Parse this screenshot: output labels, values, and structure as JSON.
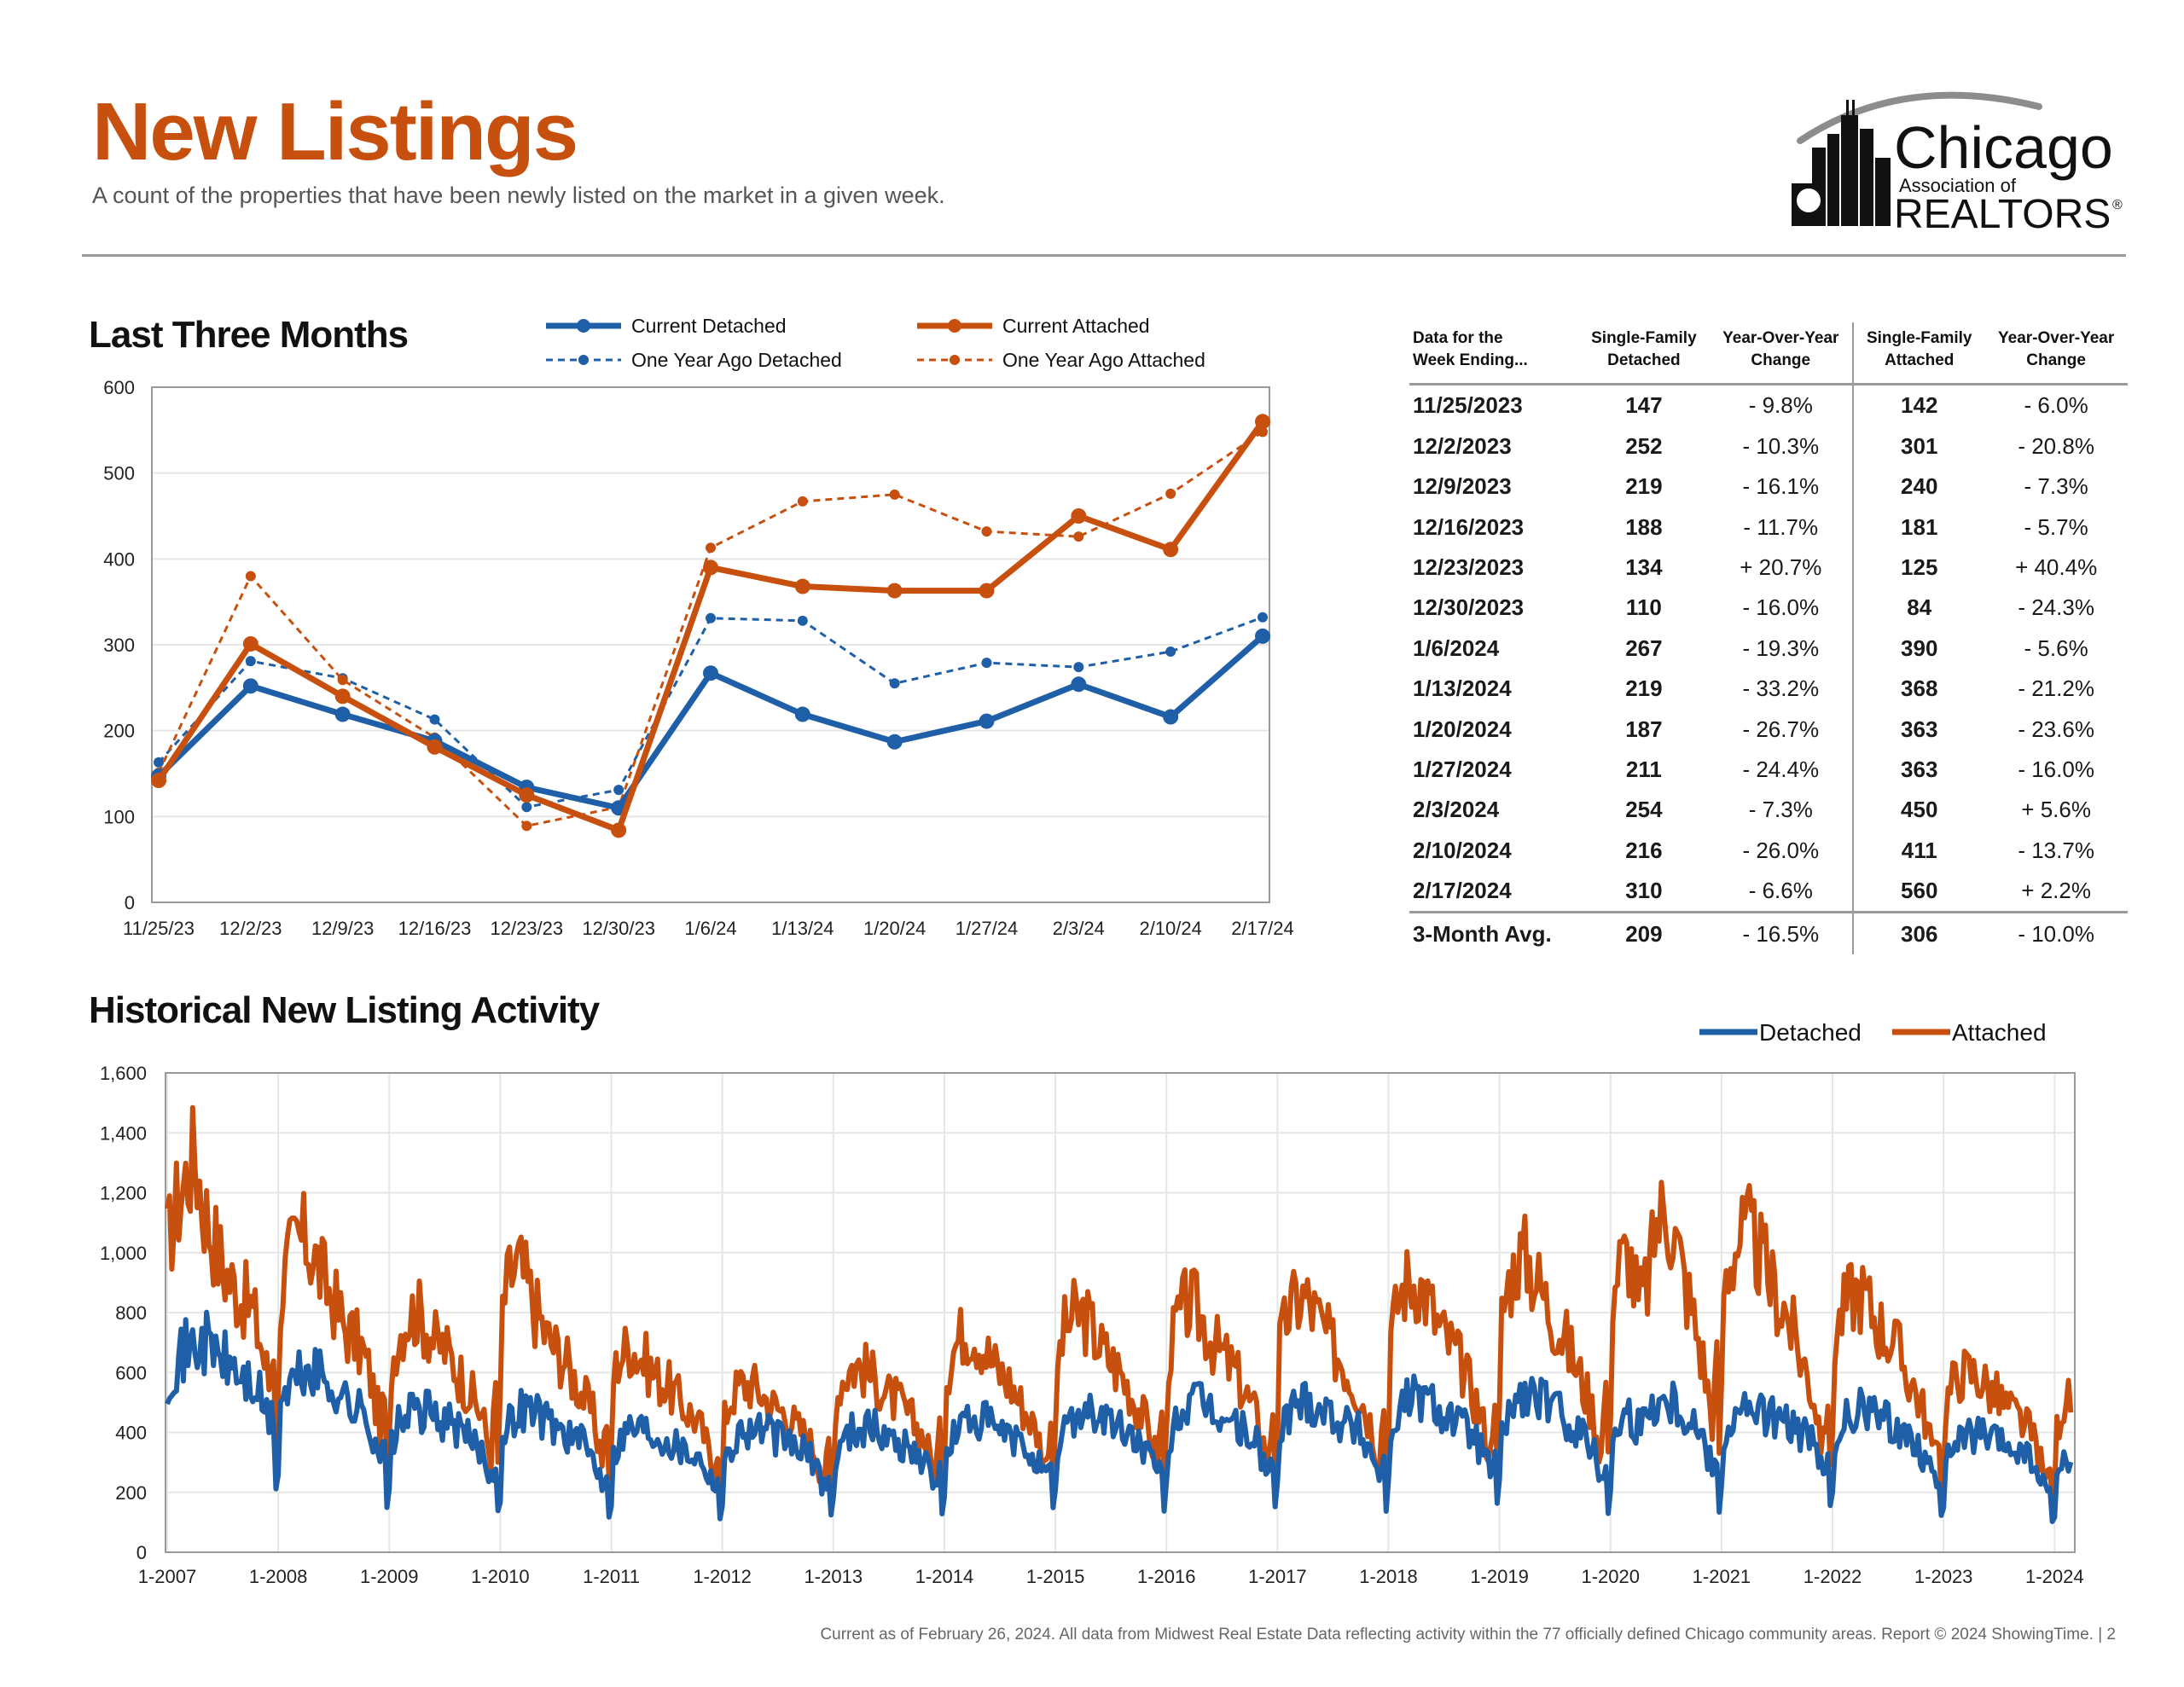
{
  "header": {
    "title": "New Listings",
    "subtitle": "A count of the properties that have been newly listed on the market in a given week.",
    "logo": {
      "name_line1": "Chicago",
      "name_line2": "Association of",
      "name_line3": "REALTORS",
      "reg": "®"
    }
  },
  "sections": {
    "last_three_months": "Last Three Months",
    "historical": "Historical New Listing Activity"
  },
  "colors": {
    "blue": "#1f5fa8",
    "orange": "#c8500e",
    "grid": "#e6e6e6",
    "axis": "#9a9a9a"
  },
  "table": {
    "headers": [
      "Data for the\nWeek Ending...",
      "Single-Family\nDetached",
      "Year-Over-Year\nChange",
      "Single-Family\nAttached",
      "Year-Over-Year\nChange"
    ],
    "rows": [
      [
        "11/25/2023",
        "147",
        "- 9.8%",
        "142",
        "- 6.0%"
      ],
      [
        "12/2/2023",
        "252",
        "- 10.3%",
        "301",
        "- 20.8%"
      ],
      [
        "12/9/2023",
        "219",
        "- 16.1%",
        "240",
        "- 7.3%"
      ],
      [
        "12/16/2023",
        "188",
        "- 11.7%",
        "181",
        "- 5.7%"
      ],
      [
        "12/23/2023",
        "134",
        "+ 20.7%",
        "125",
        "+ 40.4%"
      ],
      [
        "12/30/2023",
        "110",
        "- 16.0%",
        "84",
        "- 24.3%"
      ],
      [
        "1/6/2024",
        "267",
        "- 19.3%",
        "390",
        "- 5.6%"
      ],
      [
        "1/13/2024",
        "219",
        "- 33.2%",
        "368",
        "- 21.2%"
      ],
      [
        "1/20/2024",
        "187",
        "- 26.7%",
        "363",
        "- 23.6%"
      ],
      [
        "1/27/2024",
        "211",
        "- 24.4%",
        "363",
        "- 16.0%"
      ],
      [
        "2/3/2024",
        "254",
        "- 7.3%",
        "450",
        "+ 5.6%"
      ],
      [
        "2/10/2024",
        "216",
        "- 26.0%",
        "411",
        "- 13.7%"
      ],
      [
        "2/17/2024",
        "310",
        "- 6.6%",
        "560",
        "+ 2.2%"
      ]
    ],
    "avg": [
      "3-Month Avg.",
      "209",
      "- 16.5%",
      "306",
      "- 10.0%"
    ]
  },
  "footer": "Current as of February 26, 2024. All data from Midwest Real Estate Data reflecting activity within the 77 officially defined Chicago community areas. Report © 2024 ShowingTime.  |  2",
  "chart_data": [
    {
      "type": "line",
      "title": "Last Three Months",
      "categories": [
        "11/25/23",
        "12/2/23",
        "12/9/23",
        "12/16/23",
        "12/23/23",
        "12/30/23",
        "1/6/24",
        "1/13/24",
        "1/20/24",
        "1/27/24",
        "2/3/24",
        "2/10/24",
        "2/17/24"
      ],
      "ylim": [
        0,
        600
      ],
      "yticks": [
        0,
        100,
        200,
        300,
        400,
        500,
        600
      ],
      "grid": true,
      "legend": "top",
      "series": [
        {
          "name": "Current Detached",
          "style": "solid",
          "color": "#1f5fa8",
          "values": [
            147,
            252,
            219,
            188,
            134,
            110,
            267,
            219,
            187,
            211,
            254,
            216,
            310
          ]
        },
        {
          "name": "Current Attached",
          "style": "solid",
          "color": "#c8500e",
          "values": [
            142,
            301,
            240,
            181,
            125,
            84,
            390,
            368,
            363,
            363,
            450,
            411,
            560
          ]
        },
        {
          "name": "One Year Ago Detached",
          "style": "dashed",
          "color": "#1f5fa8",
          "values": [
            163,
            281,
            261,
            213,
            111,
            131,
            331,
            328,
            255,
            279,
            274,
            292,
            332
          ]
        },
        {
          "name": "One Year Ago Attached",
          "style": "dashed",
          "color": "#c8500e",
          "values": [
            151,
            380,
            259,
            192,
            89,
            111,
            413,
            467,
            475,
            432,
            426,
            476,
            548
          ]
        }
      ]
    },
    {
      "type": "line",
      "title": "Historical New Listing Activity",
      "x_ticks": [
        "1-2007",
        "1-2008",
        "1-2009",
        "1-2010",
        "1-2011",
        "1-2012",
        "1-2013",
        "1-2014",
        "1-2015",
        "1-2016",
        "1-2017",
        "1-2018",
        "1-2019",
        "1-2020",
        "1-2021",
        "1-2022",
        "1-2023",
        "1-2024"
      ],
      "y_tick_labels": [
        "0",
        "200",
        "400",
        "600",
        "800",
        "1,000",
        "1,200",
        "1,400",
        "1,600"
      ],
      "ylim": [
        0,
        1600
      ],
      "grid": true,
      "legend": "top-right",
      "series": [
        {
          "name": "Detached",
          "color": "#1f5fa8",
          "monthly": [
            [
              580,
              640,
              670,
              690,
              700,
              680,
              640,
              620,
              580,
              560,
              520,
              430
            ],
            [
              480,
              540,
              580,
              600,
              600,
              570,
              550,
              520,
              480,
              470,
              420,
              330
            ],
            [
              340,
              420,
              460,
              470,
              470,
              450,
              440,
              420,
              390,
              370,
              340,
              260
            ],
            [
              330,
              430,
              480,
              480,
              470,
              440,
              420,
              400,
              380,
              360,
              320,
              240
            ],
            [
              300,
              380,
              420,
              420,
              410,
              390,
              380,
              360,
              340,
              330,
              300,
              230
            ],
            [
              270,
              360,
              400,
              410,
              410,
              400,
              380,
              370,
              350,
              330,
              300,
              220
            ],
            [
              290,
              370,
              410,
              420,
              420,
              400,
              380,
              370,
              350,
              330,
              300,
              230
            ],
            [
              300,
              390,
              430,
              440,
              440,
              420,
              400,
              380,
              360,
              340,
              310,
              240
            ],
            [
              320,
              420,
              460,
              470,
              470,
              450,
              430,
              410,
              390,
              370,
              330,
              250
            ],
            [
              340,
              440,
              480,
              490,
              490,
              470,
              450,
              430,
              410,
              390,
              350,
              260
            ],
            [
              360,
              460,
              500,
              510,
              500,
              480,
              460,
              440,
              420,
              400,
              350,
              260
            ],
            [
              360,
              470,
              510,
              520,
              510,
              490,
              470,
              450,
              420,
              400,
              350,
              270
            ],
            [
              360,
              470,
              510,
              520,
              520,
              500,
              470,
              450,
              420,
              400,
              350,
              260
            ],
            [
              330,
              440,
              470,
              420,
              470,
              510,
              520,
              500,
              470,
              440,
              380,
              280
            ],
            [
              360,
              440,
              470,
              480,
              470,
              460,
              450,
              430,
              410,
              390,
              350,
              260
            ],
            [
              330,
              420,
              460,
              470,
              470,
              450,
              430,
              420,
              390,
              370,
              320,
              240
            ],
            [
              280,
              350,
              380,
              390,
              390,
              370,
              360,
              350,
              340,
              320,
              280,
              200
            ],
            [
              230,
              300
            ]
          ]
        },
        {
          "name": "Attached",
          "color": "#c8500e",
          "monthly": [
            [
              1020,
              1150,
              1250,
              1330,
              1150,
              1050,
              950,
              900,
              850,
              820,
              720,
              560
            ],
            [
              820,
              960,
              1040,
              1040,
              980,
              900,
              840,
              760,
              720,
              680,
              580,
              420
            ],
            [
              600,
              720,
              790,
              800,
              760,
              700,
              680,
              630,
              570,
              520,
              460,
              320
            ],
            [
              790,
              920,
              960,
              880,
              800,
              720,
              680,
              640,
              580,
              520,
              460,
              320
            ],
            [
              570,
              660,
              690,
              660,
              620,
              580,
              560,
              520,
              480,
              450,
              390,
              280
            ],
            [
              420,
              520,
              560,
              560,
              540,
              500,
              480,
              460,
              420,
              390,
              340,
              240
            ],
            [
              480,
              580,
              620,
              620,
              590,
              560,
              520,
              500,
              460,
              420,
              370,
              260
            ],
            [
              560,
              680,
              740,
              740,
              700,
              640,
              600,
              570,
              510,
              460,
              400,
              290
            ],
            [
              600,
              740,
              790,
              790,
              740,
              680,
              640,
              600,
              540,
              480,
              420,
              300
            ],
            [
              620,
              760,
              820,
              820,
              770,
              700,
              660,
              620,
              560,
              500,
              430,
              300
            ],
            [
              650,
              790,
              840,
              850,
              800,
              740,
              680,
              640,
              580,
              520,
              440,
              310
            ],
            [
              680,
              840,
              900,
              910,
              860,
              780,
              720,
              680,
              610,
              540,
              460,
              320
            ],
            [
              750,
              900,
              980,
              980,
              910,
              840,
              770,
              720,
              640,
              560,
              480,
              330
            ],
            [
              830,
              960,
              1000,
              820,
              900,
              1100,
              1150,
              1050,
              900,
              780,
              640,
              440
            ],
            [
              860,
              980,
              1050,
              1060,
              1000,
              920,
              850,
              800,
              700,
              620,
              520,
              360
            ],
            [
              680,
              800,
              860,
              870,
              820,
              760,
              720,
              680,
              600,
              540,
              450,
              320
            ],
            [
              480,
              560,
              600,
              600,
              580,
              540,
              510,
              480,
              450,
              420,
              360,
              230
            ],
            [
              380,
              500
            ]
          ]
        }
      ]
    }
  ]
}
